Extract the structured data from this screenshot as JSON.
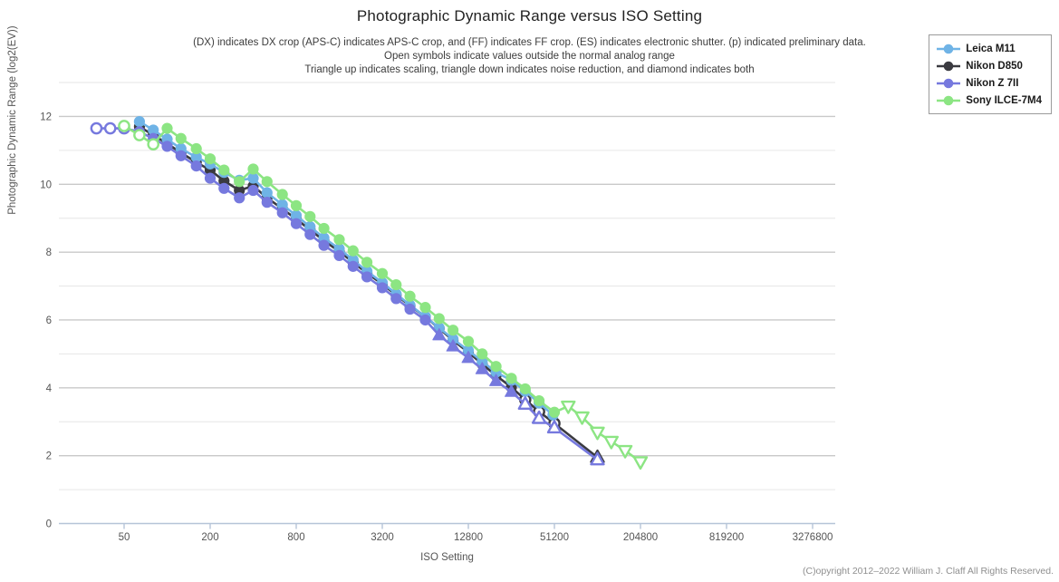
{
  "title": "Photographic Dynamic Range versus ISO Setting",
  "subtitle_lines": [
    "(DX) indicates DX crop (APS-C) indicates APS-C crop, and (FF) indicates FF crop. (ES) indicates electronic shutter. (p) indicated preliminary data.",
    "Open symbols indicate values outside the normal analog range",
    "Triangle up indicates scaling, triangle down indicates noise reduction, and diamond indicates both"
  ],
  "legend": {
    "items": [
      {
        "label": "Leica M11",
        "color": "#6FB3E6"
      },
      {
        "label": "Nikon D850",
        "color": "#3A3A40"
      },
      {
        "label": "Nikon Z 7II",
        "color": "#7679DE"
      },
      {
        "label": "Sony ILCE-7M4",
        "color": "#8CE583"
      }
    ]
  },
  "x_axis": {
    "label": "ISO Setting",
    "ticks": [
      "50",
      "200",
      "800",
      "3200",
      "12800",
      "51200",
      "204800",
      "819200",
      "3276800"
    ]
  },
  "y_axis": {
    "label": "Photographic Dynamic Range (log2(EV))",
    "ticks": [
      "0",
      "2",
      "4",
      "6",
      "8",
      "10",
      "12"
    ]
  },
  "copyright": "(C)opyright 2012–2022 William J. Claff All Rights Reserved.",
  "chart_data": {
    "type": "line",
    "title": "Photographic Dynamic Range versus ISO Setting",
    "xlabel": "ISO Setting",
    "ylabel": "Photographic Dynamic Range (log2(EV))",
    "x_scale": "log2",
    "x_tick_isos": [
      50,
      200,
      800,
      3200,
      12800,
      51200,
      204800,
      819200,
      3276800
    ],
    "ylim": [
      0,
      13
    ],
    "grid": "horizontal, major at even EV, minor at odd EV",
    "legend_position": "top-right, outside plot",
    "point_format": "[iso, pdr_ev, symbol(c=circle|tu=triangle-up|td=triangle-down), open(0=solid,1=open)]",
    "series": [
      {
        "name": "Nikon D850",
        "color": "#3A3A40",
        "points": [
          [
            64,
            11.7,
            "c",
            0
          ],
          [
            80,
            11.45,
            "c",
            0
          ],
          [
            100,
            11.2,
            "c",
            0
          ],
          [
            125,
            10.93,
            "c",
            0
          ],
          [
            160,
            10.65,
            "c",
            0
          ],
          [
            200,
            10.42,
            "c",
            0
          ],
          [
            250,
            10.1,
            "c",
            0
          ],
          [
            320,
            9.82,
            "c",
            0
          ],
          [
            400,
            9.95,
            "c",
            0
          ],
          [
            500,
            9.6,
            "c",
            0
          ],
          [
            640,
            9.28,
            "c",
            0
          ],
          [
            800,
            8.97,
            "c",
            0
          ],
          [
            1000,
            8.66,
            "c",
            0
          ],
          [
            1250,
            8.34,
            "c",
            0
          ],
          [
            1600,
            8.02,
            "c",
            0
          ],
          [
            2000,
            7.7,
            "c",
            0
          ],
          [
            2500,
            7.38,
            "c",
            0
          ],
          [
            3200,
            7.06,
            "c",
            0
          ],
          [
            4000,
            6.74,
            "c",
            0
          ],
          [
            5000,
            6.42,
            "c",
            0
          ],
          [
            6400,
            6.1,
            "c",
            0
          ],
          [
            8000,
            5.75,
            "c",
            0
          ],
          [
            10000,
            5.4,
            "c",
            0
          ],
          [
            12800,
            5.05,
            "c",
            0
          ],
          [
            16000,
            4.7,
            "c",
            0
          ],
          [
            20000,
            4.36,
            "c",
            0
          ],
          [
            25600,
            4.02,
            "c",
            0
          ],
          [
            32000,
            3.65,
            "c",
            1
          ],
          [
            40000,
            3.3,
            "c",
            1
          ],
          [
            51200,
            2.95,
            "c",
            1
          ],
          [
            102400,
            1.95,
            "tu",
            1
          ]
        ]
      },
      {
        "name": "Leica M11",
        "color": "#6FB3E6",
        "points": [
          [
            64,
            11.85,
            "c",
            0
          ],
          [
            80,
            11.6,
            "c",
            0
          ],
          [
            100,
            11.33,
            "c",
            0
          ],
          [
            125,
            11.05,
            "c",
            0
          ],
          [
            160,
            10.8,
            "c",
            0
          ],
          [
            200,
            10.6,
            "c",
            0
          ],
          [
            250,
            10.35,
            "c",
            0
          ],
          [
            320,
            10.12,
            "c",
            0
          ],
          [
            400,
            10.18,
            "c",
            0
          ],
          [
            500,
            9.75,
            "c",
            0
          ],
          [
            640,
            9.4,
            "c",
            0
          ],
          [
            800,
            9.08,
            "c",
            0
          ],
          [
            1000,
            8.75,
            "c",
            0
          ],
          [
            1250,
            8.42,
            "c",
            0
          ],
          [
            1600,
            8.1,
            "c",
            0
          ],
          [
            2000,
            7.77,
            "c",
            0
          ],
          [
            2500,
            7.44,
            "c",
            0
          ],
          [
            3200,
            7.1,
            "c",
            0
          ],
          [
            4000,
            6.77,
            "c",
            0
          ],
          [
            5000,
            6.44,
            "c",
            0
          ],
          [
            6400,
            6.1,
            "c",
            0
          ],
          [
            8000,
            5.77,
            "c",
            0
          ],
          [
            10000,
            5.44,
            "c",
            0
          ],
          [
            12800,
            5.1,
            "c",
            0
          ],
          [
            16000,
            4.78,
            "c",
            0
          ],
          [
            20000,
            4.46,
            "c",
            0
          ],
          [
            25600,
            4.22,
            "c",
            0
          ],
          [
            32000,
            3.9,
            "c",
            0
          ],
          [
            40000,
            3.55,
            "c",
            0
          ],
          [
            50000,
            3.2,
            "c",
            0
          ]
        ]
      },
      {
        "name": "Nikon Z 7II",
        "color": "#7679DE",
        "points": [
          [
            32,
            11.65,
            "c",
            1
          ],
          [
            40,
            11.65,
            "c",
            1
          ],
          [
            50,
            11.65,
            "c",
            1
          ],
          [
            64,
            11.55,
            "c",
            0
          ],
          [
            80,
            11.35,
            "c",
            0
          ],
          [
            100,
            11.12,
            "c",
            0
          ],
          [
            125,
            10.84,
            "c",
            0
          ],
          [
            160,
            10.54,
            "c",
            0
          ],
          [
            200,
            10.18,
            "c",
            0
          ],
          [
            250,
            9.88,
            "c",
            0
          ],
          [
            320,
            9.6,
            "c",
            0
          ],
          [
            400,
            9.82,
            "c",
            0
          ],
          [
            500,
            9.47,
            "c",
            0
          ],
          [
            640,
            9.16,
            "c",
            0
          ],
          [
            800,
            8.84,
            "c",
            0
          ],
          [
            1000,
            8.52,
            "c",
            0
          ],
          [
            1250,
            8.2,
            "c",
            0
          ],
          [
            1600,
            7.9,
            "c",
            0
          ],
          [
            2000,
            7.58,
            "c",
            0
          ],
          [
            2500,
            7.27,
            "c",
            0
          ],
          [
            3200,
            6.95,
            "c",
            0
          ],
          [
            4000,
            6.63,
            "c",
            0
          ],
          [
            5000,
            6.32,
            "c",
            0
          ],
          [
            6400,
            6.0,
            "c",
            0
          ],
          [
            8000,
            5.55,
            "tu",
            0
          ],
          [
            10000,
            5.22,
            "tu",
            0
          ],
          [
            12800,
            4.88,
            "tu",
            0
          ],
          [
            16000,
            4.55,
            "tu",
            0
          ],
          [
            20000,
            4.2,
            "tu",
            0
          ],
          [
            25600,
            3.88,
            "tu",
            0
          ],
          [
            32000,
            3.52,
            "tu",
            1
          ],
          [
            40000,
            3.1,
            "tu",
            1
          ],
          [
            51200,
            2.82,
            "tu",
            1
          ],
          [
            102400,
            1.88,
            "tu",
            1
          ]
        ]
      },
      {
        "name": "Sony ILCE-7M4",
        "color": "#8CE583",
        "points": [
          [
            50,
            11.72,
            "c",
            1
          ],
          [
            64,
            11.45,
            "c",
            1
          ],
          [
            80,
            11.18,
            "c",
            1
          ],
          [
            100,
            11.65,
            "c",
            0
          ],
          [
            125,
            11.35,
            "c",
            0
          ],
          [
            160,
            11.05,
            "c",
            0
          ],
          [
            200,
            10.75,
            "c",
            0
          ],
          [
            250,
            10.42,
            "c",
            0
          ],
          [
            320,
            10.08,
            "c",
            0
          ],
          [
            400,
            10.45,
            "c",
            0
          ],
          [
            500,
            10.08,
            "c",
            0
          ],
          [
            640,
            9.7,
            "c",
            0
          ],
          [
            800,
            9.37,
            "c",
            0
          ],
          [
            1000,
            9.05,
            "c",
            0
          ],
          [
            1250,
            8.7,
            "c",
            0
          ],
          [
            1600,
            8.37,
            "c",
            0
          ],
          [
            2000,
            8.04,
            "c",
            0
          ],
          [
            2500,
            7.7,
            "c",
            0
          ],
          [
            3200,
            7.37,
            "c",
            0
          ],
          [
            4000,
            7.04,
            "c",
            0
          ],
          [
            5000,
            6.7,
            "c",
            0
          ],
          [
            6400,
            6.37,
            "c",
            0
          ],
          [
            8000,
            6.04,
            "c",
            0
          ],
          [
            10000,
            5.7,
            "c",
            0
          ],
          [
            12800,
            5.37,
            "c",
            0
          ],
          [
            16000,
            5.0,
            "c",
            0
          ],
          [
            20000,
            4.63,
            "c",
            0
          ],
          [
            25600,
            4.28,
            "c",
            0
          ],
          [
            32000,
            3.97,
            "c",
            0
          ],
          [
            40000,
            3.62,
            "c",
            0
          ],
          [
            51200,
            3.28,
            "c",
            0
          ],
          [
            64000,
            3.46,
            "td",
            1
          ],
          [
            80000,
            3.14,
            "td",
            1
          ],
          [
            102400,
            2.69,
            "td",
            1
          ],
          [
            128000,
            2.42,
            "td",
            1
          ],
          [
            160000,
            2.15,
            "td",
            1
          ],
          [
            204800,
            1.82,
            "td",
            1
          ]
        ]
      }
    ]
  }
}
